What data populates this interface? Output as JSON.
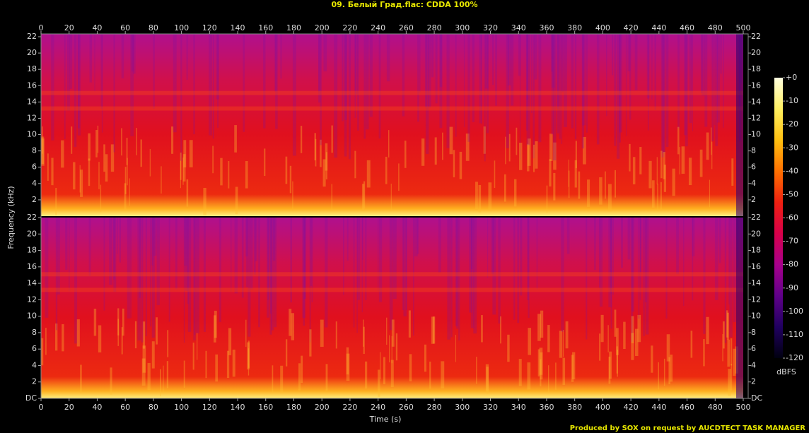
{
  "chart_data": {
    "type": "spectrogram",
    "title": "09. Белый Град.flac: CDDA 100%",
    "x_label": "Time (s)",
    "y_label": "Frequency (kHz)",
    "xlim": [
      0,
      500
    ],
    "xticks": [
      0,
      20,
      40,
      60,
      80,
      100,
      120,
      140,
      160,
      180,
      200,
      220,
      240,
      260,
      280,
      300,
      320,
      340,
      360,
      380,
      400,
      420,
      440,
      460,
      480,
      500
    ],
    "channels": [
      {
        "ylim": [
          0,
          22
        ],
        "yticks": [
          2,
          4,
          6,
          8,
          10,
          12,
          14,
          16,
          18,
          20,
          22
        ]
      },
      {
        "ylim": [
          0,
          22
        ],
        "yticks": [
          {
            "value": 0,
            "label": "DC"
          },
          2,
          4,
          6,
          8,
          10,
          12,
          14,
          16,
          18,
          20,
          22
        ]
      }
    ],
    "colorbar": {
      "label": "dBFS",
      "lim": [
        -120,
        0
      ],
      "ticks": [
        {
          "value": 0,
          "label": "+0"
        },
        -10,
        -20,
        -30,
        -40,
        -50,
        -60,
        -70,
        -80,
        -90,
        -100,
        -110,
        -120
      ],
      "colors": [
        "#ffffe0",
        "#fff060",
        "#ffc010",
        "#ff7000",
        "#f02010",
        "#d8004a",
        "#a8008c",
        "#60008a",
        "#200060",
        "#000010"
      ]
    }
  },
  "footer": "Produced by SOX on request by AUCDTECT TASK MANAGER"
}
